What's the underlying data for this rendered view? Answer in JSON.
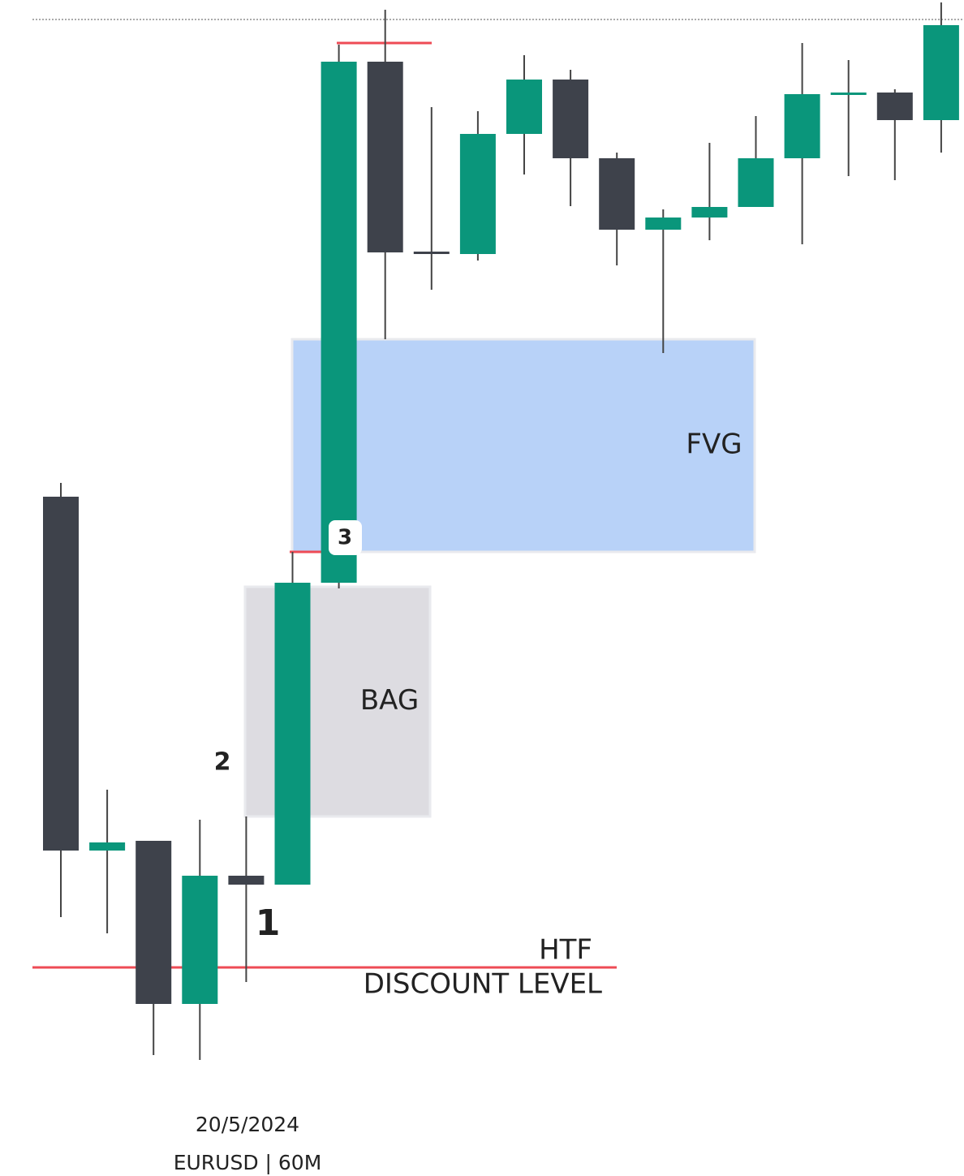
{
  "chart_data": {
    "type": "candlestick",
    "ylim": [
      0,
      1449
    ],
    "up_color": "#0a967b",
    "down_color": "#3e424b",
    "open": [
      837,
      401,
      413,
      212,
      370,
      359,
      731,
      1373,
      1139,
      1136,
      1284,
      1351,
      1254,
      1166,
      1181,
      1194,
      1254,
      1333,
      1335,
      1301
    ],
    "high": [
      854,
      476,
      413,
      439,
      443,
      769,
      1394,
      1437,
      1317,
      1312,
      1381,
      1363,
      1261,
      1191,
      1273,
      1306,
      1396,
      1375,
      1339,
      1446
    ],
    "low": [
      319,
      299,
      149,
      143,
      239,
      359,
      724,
      1031,
      1092,
      1128,
      1234,
      1195,
      1122,
      1014,
      1153,
      1194,
      1148,
      1232,
      1227,
      1261
    ],
    "close": [
      401,
      411,
      212,
      370,
      359,
      731,
      1373,
      1138,
      1137,
      1284,
      1351,
      1254,
      1166,
      1181,
      1194,
      1254,
      1333,
      1335,
      1301,
      1418
    ],
    "zones": [
      {
        "label": "FVG",
        "top": 1031,
        "bottom": 769,
        "color": "#b8d2f8"
      },
      {
        "label": "BAG",
        "top": 726,
        "bottom": 443,
        "color": "#dddce1"
      }
    ],
    "levels": [
      {
        "label_lines": [
          "HTF",
          "DISCOUNT LEVEL"
        ],
        "value": 257,
        "color": "#ee4b55"
      }
    ],
    "highs_marked": [
      1396,
      769
    ],
    "annotations": [
      "1",
      "2",
      "3"
    ],
    "footer": [
      "20/5/2024",
      "EURUSD | 60M"
    ]
  }
}
